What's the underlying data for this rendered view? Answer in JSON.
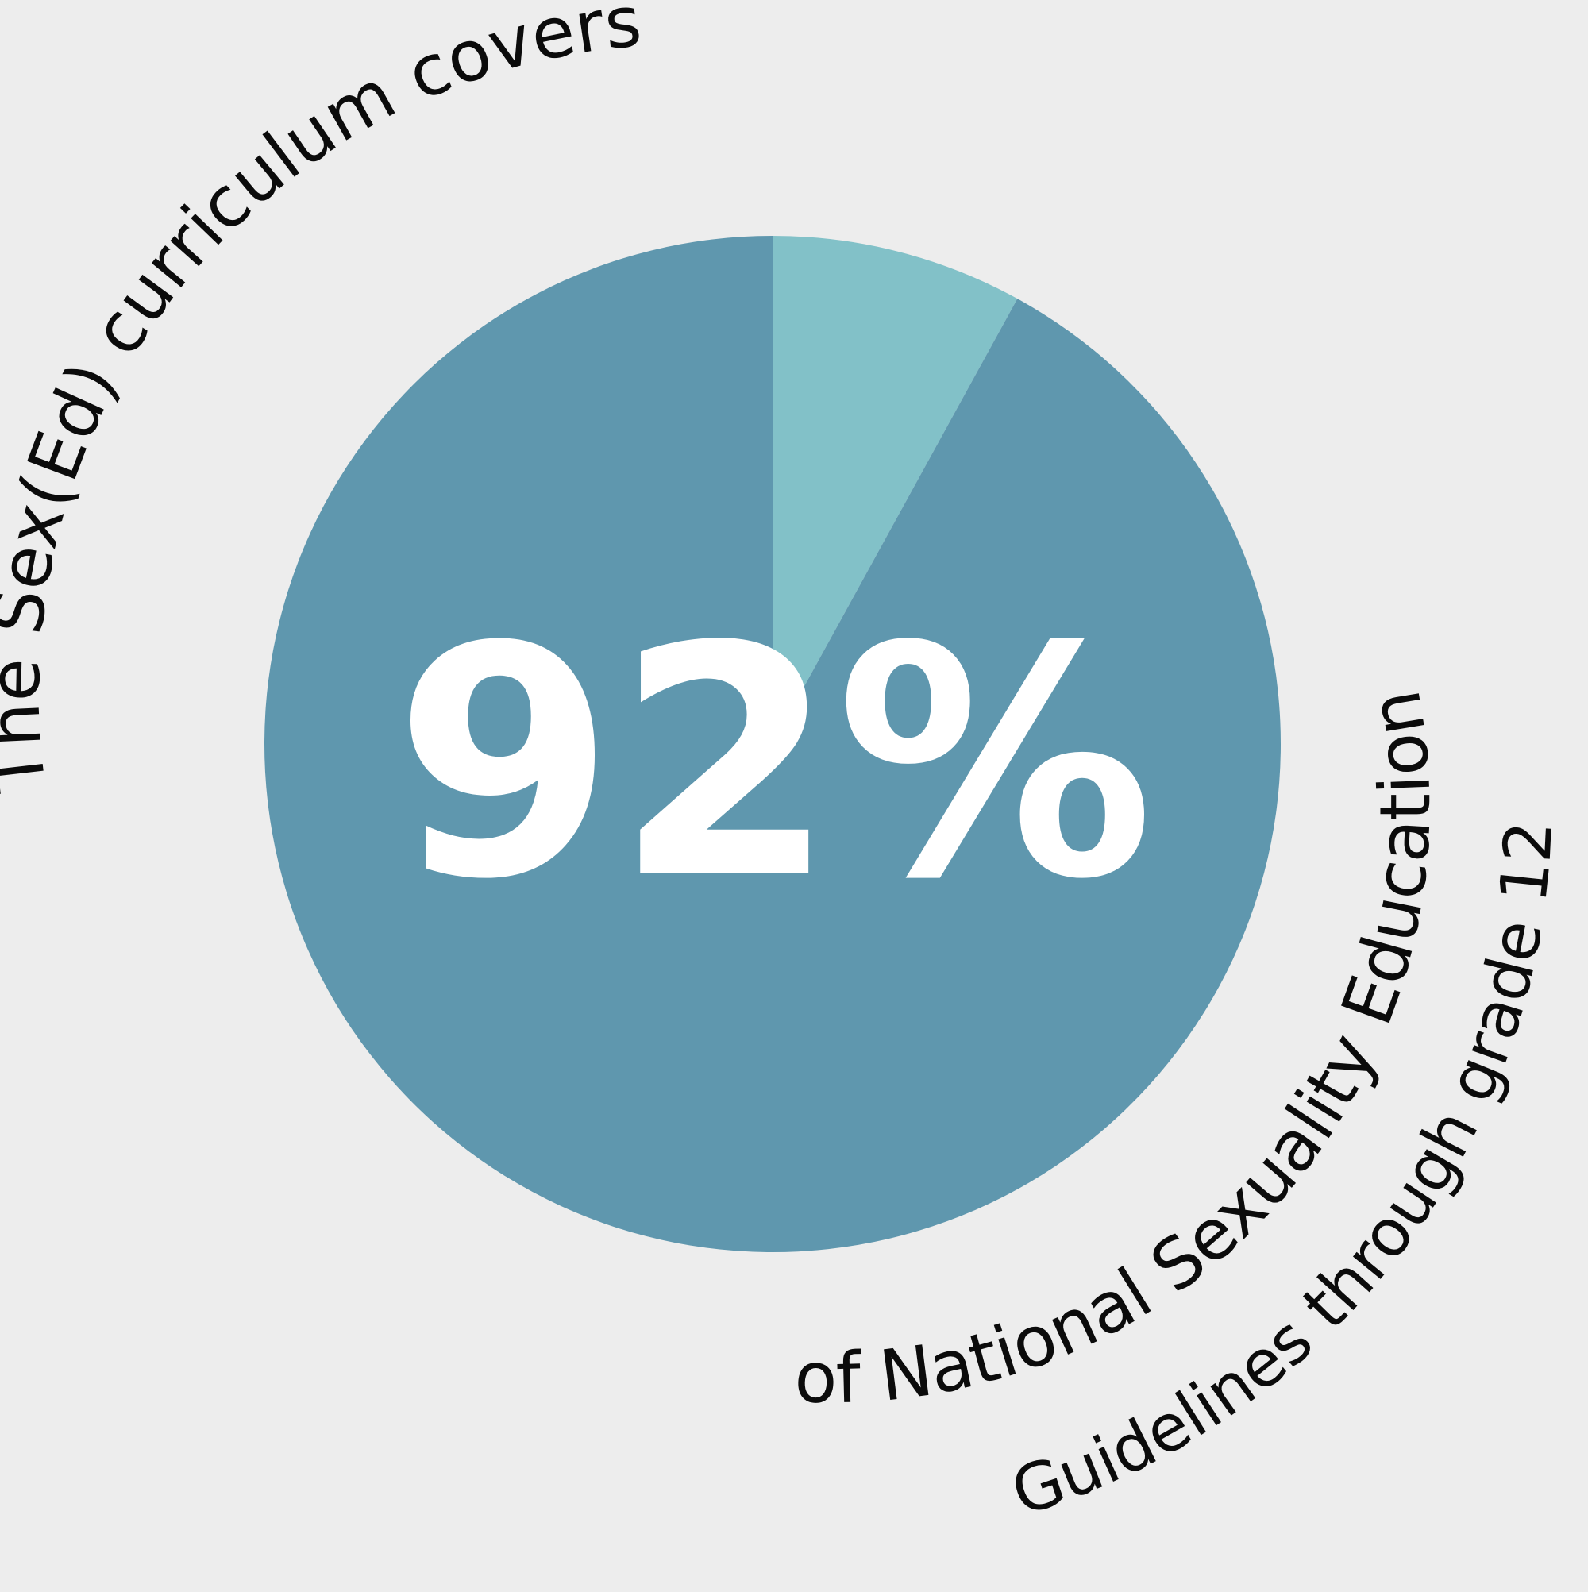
{
  "colors": {
    "background": "#ededed",
    "covered": "#5f97ae",
    "not_covered": "#82c1c8",
    "center_text": "#ffffff",
    "arc_text": "#0b0b0b"
  },
  "arc_text": {
    "top": "The Sex(Ed) curriculum covers",
    "bottom_outer": "of National Sexuality Education",
    "bottom_inner": "Guidelines through grade 12"
  },
  "center_value": "92%",
  "chart_data": {
    "type": "pie",
    "title": "",
    "values": [
      92,
      8
    ],
    "center_label": "92%",
    "colors": [
      "#5f97ae",
      "#82c1c8"
    ]
  }
}
